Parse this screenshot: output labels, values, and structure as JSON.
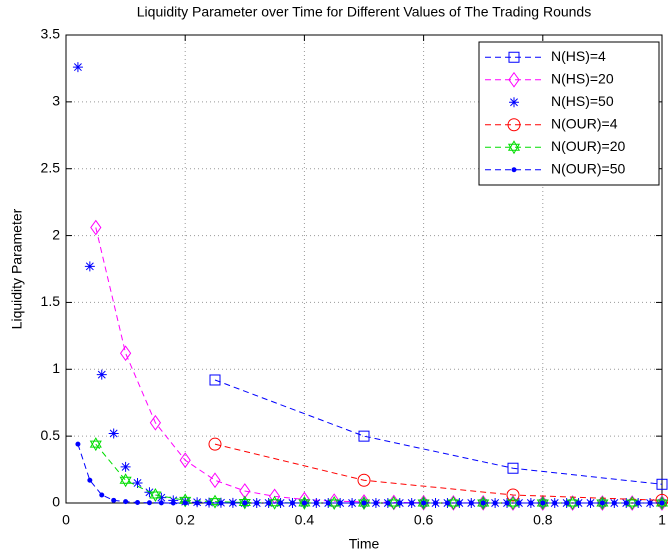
{
  "chart_data": {
    "type": "line",
    "title": "Liquidity Parameter over Time for Different Values of The Trading Rounds",
    "xlabel": "Time",
    "ylabel": "Liquidity Parameter",
    "xlim": [
      0,
      1
    ],
    "xticks": [
      0,
      0.2,
      0.4,
      0.6,
      0.8,
      1
    ],
    "ylim": [
      0,
      3.5
    ],
    "yticks": [
      0,
      0.5,
      1,
      1.5,
      2,
      2.5,
      3,
      3.5
    ],
    "grid": true,
    "legend": "upper right",
    "series": [
      {
        "name": "N(HS)=4",
        "color": "#0000ff",
        "marker": "square",
        "linestyle": "dashed",
        "x": [
          0.25,
          0.5,
          0.75,
          1
        ],
        "values": [
          0.92,
          0.5,
          0.26,
          0.14
        ]
      },
      {
        "name": "N(HS)=20",
        "color": "#ff00ff",
        "marker": "diamond",
        "linestyle": "dashed",
        "x": [
          0.05,
          0.1,
          0.15,
          0.2,
          0.25,
          0.3,
          0.35,
          0.4,
          0.45,
          0.5,
          0.55,
          0.6,
          0.65,
          0.7,
          0.75,
          0.8,
          0.85,
          0.9,
          0.95,
          1
        ],
        "values": [
          2.06,
          1.12,
          0.6,
          0.32,
          0.17,
          0.09,
          0.05,
          0.026,
          0.014,
          0.008,
          0.004,
          0.002,
          0.001,
          0.001,
          0,
          0,
          0,
          0,
          0,
          0
        ]
      },
      {
        "name": "N(HS)=50",
        "color": "#0000ff",
        "marker": "asterisk",
        "linestyle": "none",
        "x": [
          0.02,
          0.04,
          0.06,
          0.08,
          0.1,
          0.12,
          0.14,
          0.16,
          0.18,
          0.2,
          0.22,
          0.24,
          0.26,
          0.28,
          0.3,
          0.32,
          0.34,
          0.36,
          0.38,
          0.4,
          0.42,
          0.44,
          0.46,
          0.48,
          0.5,
          0.52,
          0.54,
          0.56,
          0.58,
          0.6,
          0.62,
          0.64,
          0.66,
          0.68,
          0.7,
          0.72,
          0.74,
          0.76,
          0.78,
          0.8,
          0.82,
          0.84,
          0.86,
          0.88,
          0.9,
          0.92,
          0.94,
          0.96,
          0.98,
          1
        ],
        "values": [
          3.26,
          1.77,
          0.96,
          0.52,
          0.27,
          0.15,
          0.08,
          0.04,
          0.02,
          0.01,
          0.006,
          0.003,
          0.002,
          0.001,
          0,
          0,
          0,
          0,
          0,
          0,
          0,
          0,
          0,
          0,
          0,
          0,
          0,
          0,
          0,
          0,
          0,
          0,
          0,
          0,
          0,
          0,
          0,
          0,
          0,
          0,
          0,
          0,
          0,
          0,
          0,
          0,
          0,
          0,
          0,
          0
        ]
      },
      {
        "name": "N(OUR)=4",
        "color": "#ff0000",
        "marker": "circle",
        "linestyle": "dashed",
        "x": [
          0.25,
          0.5,
          0.75,
          1
        ],
        "values": [
          0.44,
          0.17,
          0.06,
          0.02
        ]
      },
      {
        "name": "N(OUR)=20",
        "color": "#00dd00",
        "marker": "hexagram",
        "linestyle": "dashed",
        "x": [
          0.05,
          0.1,
          0.15,
          0.2,
          0.25,
          0.3,
          0.35,
          0.4,
          0.45,
          0.5,
          0.55,
          0.6,
          0.65,
          0.7,
          0.75,
          0.8,
          0.85,
          0.9,
          0.95,
          1
        ],
        "values": [
          0.44,
          0.17,
          0.06,
          0.02,
          0.01,
          0.004,
          0.002,
          0.001,
          0,
          0,
          0,
          0,
          0,
          0,
          0,
          0,
          0,
          0,
          0,
          0
        ]
      },
      {
        "name": "N(OUR)=50",
        "color": "#0000ff",
        "marker": "dot",
        "linestyle": "dashed",
        "x": [
          0.02,
          0.04,
          0.06,
          0.08,
          0.1,
          0.12,
          0.14,
          0.16,
          0.18,
          0.2,
          0.22,
          0.24,
          0.26,
          0.28,
          0.3,
          0.32,
          0.34,
          0.36,
          0.38,
          0.4,
          0.42,
          0.44,
          0.46,
          0.48,
          0.5,
          0.52,
          0.54,
          0.56,
          0.58,
          0.6,
          0.62,
          0.64,
          0.66,
          0.68,
          0.7,
          0.72,
          0.74,
          0.76,
          0.78,
          0.8,
          0.82,
          0.84,
          0.86,
          0.88,
          0.9,
          0.92,
          0.94,
          0.96,
          0.98,
          1
        ],
        "values": [
          0.44,
          0.17,
          0.06,
          0.02,
          0.01,
          0.004,
          0.002,
          0.001,
          0,
          0,
          0,
          0,
          0,
          0,
          0,
          0,
          0,
          0,
          0,
          0,
          0,
          0,
          0,
          0,
          0,
          0,
          0,
          0,
          0,
          0,
          0,
          0,
          0,
          0,
          0,
          0,
          0,
          0,
          0,
          0,
          0,
          0,
          0,
          0,
          0,
          0,
          0,
          0,
          0,
          0
        ]
      }
    ]
  }
}
